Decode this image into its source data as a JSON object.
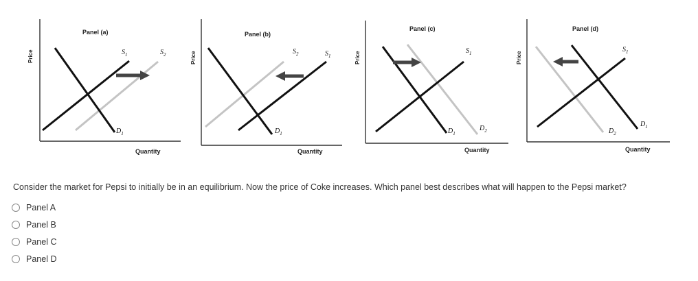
{
  "axis_labels": {
    "y": "Price",
    "x": "Quantity"
  },
  "panels": [
    {
      "title": "Panel (a)",
      "s_labels": [
        "S1",
        "S2"
      ],
      "d_labels": [
        "D1"
      ],
      "shift": "supply-right"
    },
    {
      "title": "Panel (b)",
      "s_labels": [
        "S2",
        "S1"
      ],
      "d_labels": [
        "D1"
      ],
      "shift": "supply-left"
    },
    {
      "title": "Panel (c)",
      "s_labels": [
        "S1"
      ],
      "d_labels": [
        "D1",
        "D2"
      ],
      "shift": "demand-right"
    },
    {
      "title": "Panel (d)",
      "s_labels": [
        "S1"
      ],
      "d_labels": [
        "D2",
        "D1"
      ],
      "shift": "demand-left"
    }
  ],
  "question": "Consider the market for Pepsi to initially be in an equilibrium. Now the price of Coke increases. Which panel best describes what will happen to the Pepsi market?",
  "options": [
    {
      "label": "Panel A",
      "selected": false
    },
    {
      "label": "Panel B",
      "selected": false
    },
    {
      "label": "Panel C",
      "selected": false
    },
    {
      "label": "Panel D",
      "selected": false
    }
  ],
  "colors": {
    "original_curve": "#111111",
    "shifted_curve": "#c4c4c4",
    "arrow": "#444444"
  }
}
